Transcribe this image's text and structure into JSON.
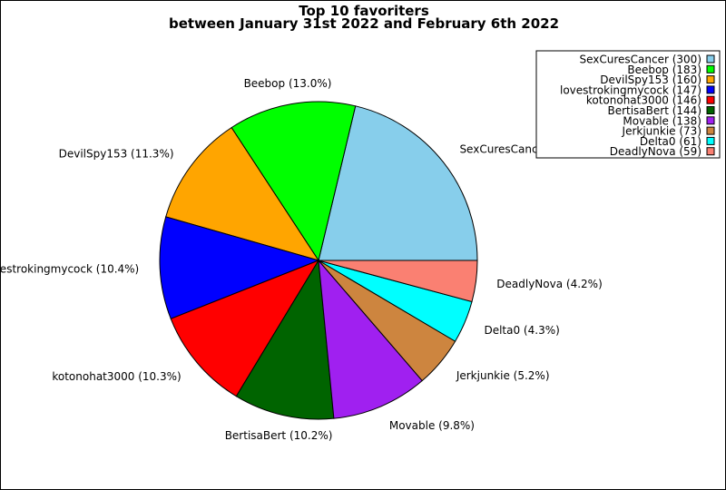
{
  "chart_data": {
    "type": "pie",
    "title": "Top 10 favoriters",
    "subtitle": "between January 31st 2022 and February 6th 2022",
    "categories": [
      "SexCuresCancer",
      "Beebop",
      "DevilSpy153",
      "lovestrokingmycock",
      "kotonohat3000",
      "BertisaBert",
      "Movable",
      "Jerkjunkie",
      "Delta0",
      "DeadlyNova"
    ],
    "values": [
      300,
      183,
      160,
      147,
      146,
      144,
      138,
      73,
      61,
      59
    ],
    "percent_labels": [
      "21.3%",
      "13.0%",
      "11.3%",
      "10.4%",
      "10.3%",
      "10.2%",
      "9.8%",
      "5.2%",
      "4.3%",
      "4.2%"
    ],
    "colors": [
      "#87ceeb",
      "#00ff00",
      "#ffa500",
      "#0000ff",
      "#ff0000",
      "#006400",
      "#a020f0",
      "#cd853f",
      "#00ffff",
      "#fa8072"
    ],
    "start_angle_deg": 0,
    "direction": "counterclockwise",
    "legend_position": "top-right"
  }
}
